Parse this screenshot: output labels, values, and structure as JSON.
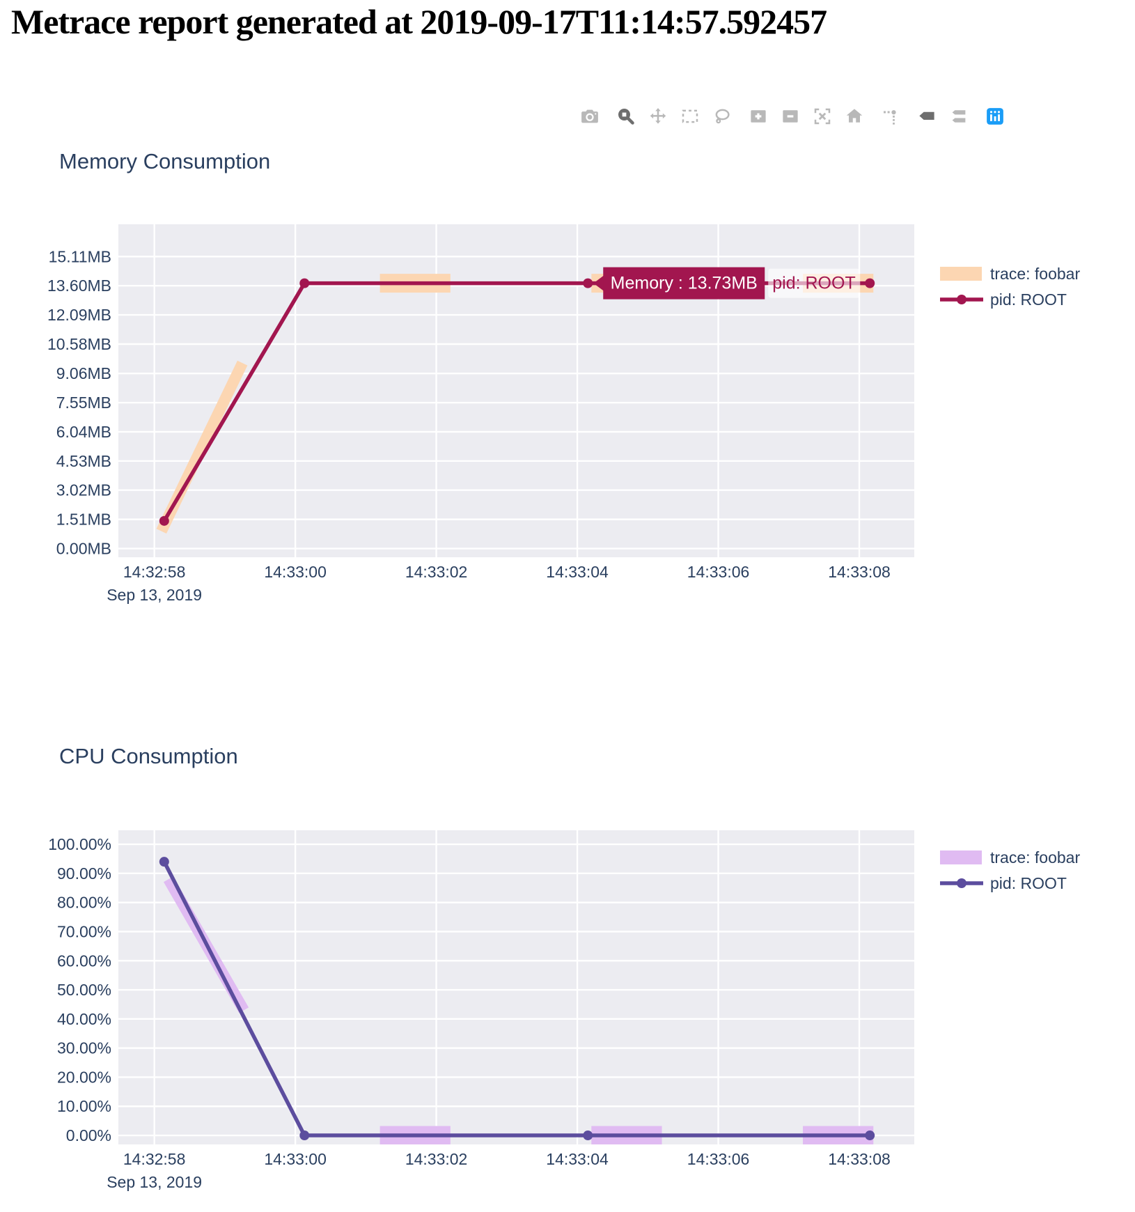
{
  "page": {
    "title": "Metrace report generated at 2019-09-17T11:14:57.592457"
  },
  "modebar": {
    "groups": [
      [
        "camera-icon"
      ],
      [
        "zoom-icon",
        "pan-icon",
        "box-select-icon",
        "lasso-icon"
      ],
      [
        "zoom-in-icon",
        "zoom-out-icon",
        "autoscale-icon",
        "home-icon"
      ],
      [
        "spikelines-icon"
      ],
      [
        "hover-closest-icon",
        "hover-compare-icon"
      ],
      [
        "plotly-logo-icon"
      ]
    ],
    "active": [
      "zoom-icon",
      "hover-closest-icon"
    ],
    "icon_color": "#b8b8b8",
    "active_color": "#6e6e6e",
    "logo_color": "#1a9df7"
  },
  "colors": {
    "plot_bg": "#ececf1",
    "grid": "#ffffff",
    "text": "#2a3f5f",
    "tooltip_text": "#ffffff",
    "tooltip_secondary_bg": "rgba(255,255,255,0.62)"
  },
  "chart_data": [
    {
      "type": "line",
      "title": "Memory Consumption",
      "y_unit": "MB",
      "x_unit": "seconds since 14:32:58",
      "x_date_label": "Sep 13, 2019",
      "x_range": [
        -0.51,
        10.78
      ],
      "y_range": [
        -0.45,
        16.78
      ],
      "grid": true,
      "legend_position": "right",
      "x_ticks": [
        {
          "t": 0,
          "label": "14:32:58"
        },
        {
          "t": 2,
          "label": "14:33:00"
        },
        {
          "t": 4,
          "label": "14:33:02"
        },
        {
          "t": 6,
          "label": "14:33:04"
        },
        {
          "t": 8,
          "label": "14:33:06"
        },
        {
          "t": 10,
          "label": "14:33:08"
        }
      ],
      "y_ticks": [
        {
          "v": 0,
          "label": "0.00MB"
        },
        {
          "v": 1.51,
          "label": "1.51MB"
        },
        {
          "v": 3.02,
          "label": "3.02MB"
        },
        {
          "v": 4.53,
          "label": "4.53MB"
        },
        {
          "v": 6.04,
          "label": "6.04MB"
        },
        {
          "v": 7.55,
          "label": "7.55MB"
        },
        {
          "v": 9.06,
          "label": "9.06MB"
        },
        {
          "v": 10.58,
          "label": "10.58MB"
        },
        {
          "v": 12.09,
          "label": "12.09MB"
        },
        {
          "v": 13.6,
          "label": "13.60MB"
        },
        {
          "v": 15.11,
          "label": "15.11MB"
        }
      ],
      "series": [
        {
          "name": "trace: foobar",
          "color": "#fcd6b2",
          "style": "band",
          "segments": [
            [
              [
                0.1,
                0.9
              ],
              [
                1.25,
                9.6
              ]
            ],
            [
              [
                3.2,
                13.73
              ],
              [
                4.2,
                13.73
              ]
            ],
            [
              [
                6.2,
                13.73
              ],
              [
                7.2,
                13.73
              ]
            ],
            [
              [
                9.2,
                13.73
              ],
              [
                10.2,
                13.73
              ]
            ]
          ]
        },
        {
          "name": "pid: ROOT",
          "color": "#a2164f",
          "style": "line-marker",
          "points": [
            [
              0.14,
              1.43
            ],
            [
              2.13,
              13.73
            ],
            [
              6.15,
              13.73
            ],
            [
              10.15,
              13.73
            ]
          ]
        }
      ],
      "hover": {
        "text": "Memory : 13.73MB",
        "trace": "pid: ROOT",
        "point": [
          6.15,
          13.73
        ]
      }
    },
    {
      "type": "line",
      "title": "CPU Consumption",
      "y_unit": "%",
      "x_unit": "seconds since 14:32:58",
      "x_date_label": "Sep 13, 2019",
      "x_range": [
        -0.51,
        10.78
      ],
      "y_range": [
        -3.1,
        104.8
      ],
      "grid": true,
      "legend_position": "right",
      "x_ticks": [
        {
          "t": 0,
          "label": "14:32:58"
        },
        {
          "t": 2,
          "label": "14:33:00"
        },
        {
          "t": 4,
          "label": "14:33:02"
        },
        {
          "t": 6,
          "label": "14:33:04"
        },
        {
          "t": 8,
          "label": "14:33:06"
        },
        {
          "t": 10,
          "label": "14:33:08"
        }
      ],
      "y_ticks": [
        {
          "v": 0,
          "label": "0.00%"
        },
        {
          "v": 10,
          "label": "10.00%"
        },
        {
          "v": 20,
          "label": "20.00%"
        },
        {
          "v": 30,
          "label": "30.00%"
        },
        {
          "v": 40,
          "label": "40.00%"
        },
        {
          "v": 50,
          "label": "50.00%"
        },
        {
          "v": 60,
          "label": "60.00%"
        },
        {
          "v": 70,
          "label": "70.00%"
        },
        {
          "v": 80,
          "label": "80.00%"
        },
        {
          "v": 90,
          "label": "90.00%"
        },
        {
          "v": 100,
          "label": "100.00%"
        }
      ],
      "series": [
        {
          "name": "trace: foobar",
          "color": "#e0bbf2",
          "style": "band",
          "segments": [
            [
              [
                0.2,
                88
              ],
              [
                1.27,
                43
              ]
            ],
            [
              [
                3.2,
                0
              ],
              [
                4.2,
                0
              ]
            ],
            [
              [
                6.2,
                0
              ],
              [
                7.2,
                0
              ]
            ],
            [
              [
                9.2,
                0
              ],
              [
                10.2,
                0
              ]
            ]
          ]
        },
        {
          "name": "pid: ROOT",
          "color": "#5c4d9e",
          "style": "line-marker",
          "points": [
            [
              0.14,
              94
            ],
            [
              2.13,
              0
            ],
            [
              6.15,
              0
            ],
            [
              10.15,
              0
            ]
          ]
        }
      ]
    }
  ]
}
